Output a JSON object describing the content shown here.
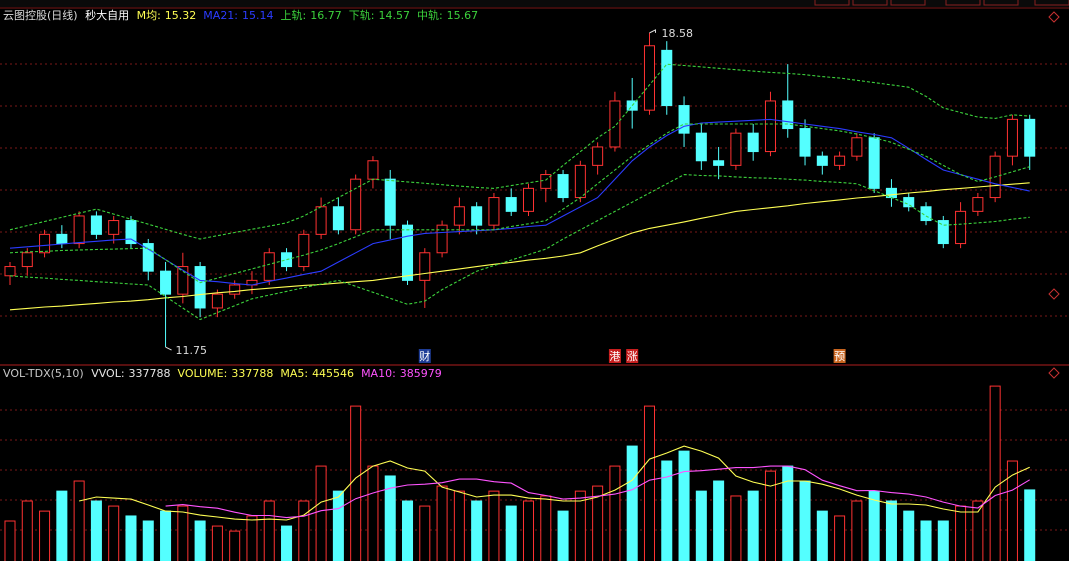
{
  "chart_data": [
    {
      "type": "candlestick",
      "title": "云图控股(日线)",
      "subtitle": "秒大自用",
      "ylim": [
        11.36,
        18.86
      ],
      "up_color": "#ff3232",
      "down_color": "#54ffff",
      "open": [
        13.3,
        13.5,
        13.8,
        14.2,
        14.0,
        14.6,
        14.2,
        14.5,
        14.0,
        13.4,
        12.9,
        13.5,
        12.6,
        12.9,
        13.1,
        13.2,
        13.8,
        13.5,
        14.2,
        14.8,
        14.3,
        15.4,
        15.4,
        14.4,
        13.2,
        13.8,
        14.4,
        14.8,
        14.4,
        15.0,
        14.7,
        15.2,
        15.5,
        15.0,
        15.7,
        16.1,
        17.1,
        16.9,
        18.2,
        17.0,
        16.4,
        15.8,
        15.7,
        16.4,
        16.0,
        17.1,
        16.5,
        15.9,
        15.7,
        15.9,
        16.3,
        15.2,
        15.0,
        14.8,
        14.5,
        14.0,
        14.7,
        15.0,
        15.9,
        16.7
      ],
      "high": [
        13.6,
        13.9,
        14.3,
        14.4,
        14.7,
        14.7,
        14.6,
        14.6,
        14.1,
        13.6,
        13.8,
        13.6,
        13.0,
        13.2,
        13.4,
        13.9,
        13.9,
        14.3,
        15.0,
        15.0,
        15.5,
        15.9,
        15.6,
        14.5,
        13.9,
        14.5,
        15.0,
        14.9,
        15.1,
        15.2,
        15.3,
        15.6,
        15.6,
        15.8,
        16.2,
        17.3,
        17.6,
        18.58,
        18.4,
        17.2,
        16.6,
        16.1,
        16.5,
        16.6,
        17.3,
        17.9,
        16.7,
        16.0,
        16.0,
        16.4,
        16.4,
        15.4,
        15.1,
        14.9,
        14.6,
        14.9,
        15.1,
        16.0,
        16.8,
        16.8
      ],
      "low": [
        13.1,
        13.3,
        13.7,
        13.9,
        13.9,
        14.1,
        14.0,
        13.9,
        13.2,
        11.75,
        12.7,
        12.4,
        12.4,
        12.8,
        12.9,
        13.1,
        13.4,
        13.4,
        14.1,
        14.2,
        14.2,
        15.2,
        14.1,
        13.1,
        12.6,
        13.7,
        14.2,
        14.2,
        14.3,
        14.6,
        14.6,
        14.9,
        14.9,
        14.9,
        15.5,
        16.0,
        16.5,
        16.8,
        16.8,
        16.1,
        15.6,
        15.4,
        15.6,
        15.8,
        15.9,
        16.3,
        15.7,
        15.5,
        15.6,
        15.8,
        15.1,
        14.8,
        14.7,
        14.4,
        13.9,
        13.9,
        14.6,
        14.9,
        15.7,
        15.6
      ],
      "close": [
        13.5,
        13.8,
        14.2,
        14.0,
        14.6,
        14.2,
        14.5,
        14.0,
        13.4,
        12.9,
        13.5,
        12.6,
        12.9,
        13.1,
        13.2,
        13.8,
        13.5,
        14.2,
        14.8,
        14.3,
        15.4,
        15.8,
        14.4,
        13.2,
        13.8,
        14.4,
        14.8,
        14.4,
        15.0,
        14.7,
        15.2,
        15.5,
        15.0,
        15.7,
        16.1,
        17.1,
        16.9,
        18.3,
        17.0,
        16.4,
        15.8,
        15.7,
        16.4,
        16.0,
        17.1,
        16.5,
        15.9,
        15.7,
        15.9,
        16.3,
        15.2,
        15.0,
        14.8,
        14.5,
        14.0,
        14.7,
        15.0,
        15.9,
        16.7,
        15.9
      ],
      "series": [
        {
          "name": "M均:",
          "color": "#ffff54",
          "dashed": false,
          "values": [
            12.56,
            12.59,
            12.62,
            12.64,
            12.67,
            12.7,
            12.73,
            12.75,
            12.78,
            12.82,
            12.85,
            12.89,
            12.93,
            12.96,
            13.0,
            13.03,
            13.06,
            13.09,
            13.11,
            13.14,
            13.17,
            13.2,
            13.25,
            13.3,
            13.35,
            13.4,
            13.45,
            13.5,
            13.55,
            13.59,
            13.64,
            13.68,
            13.73,
            13.8,
            13.95,
            14.09,
            14.23,
            14.33,
            14.4,
            14.47,
            14.55,
            14.62,
            14.7,
            14.74,
            14.78,
            14.82,
            14.87,
            14.91,
            14.95,
            14.99,
            15.02,
            15.06,
            15.1,
            15.13,
            15.17,
            15.2,
            15.23,
            15.26,
            15.29,
            15.32
          ]
        },
        {
          "name": "MA21:",
          "color": "#2b3cff",
          "dashed": false,
          "values": [
            13.9,
            13.93,
            13.96,
            13.99,
            14.02,
            14.05,
            14.08,
            14.1,
            13.88,
            13.65,
            13.42,
            13.2,
            13.17,
            13.13,
            13.1,
            13.18,
            13.25,
            13.33,
            13.4,
            13.6,
            13.8,
            14.0,
            14.08,
            14.16,
            14.22,
            14.24,
            14.26,
            14.28,
            14.3,
            14.33,
            14.37,
            14.4,
            14.6,
            14.8,
            15.0,
            15.4,
            15.8,
            16.1,
            16.35,
            16.55,
            16.62,
            16.64,
            16.66,
            16.68,
            16.7,
            16.65,
            16.6,
            16.55,
            16.5,
            16.43,
            16.37,
            16.3,
            16.07,
            15.83,
            15.6,
            15.5,
            15.4,
            15.3,
            15.22,
            15.14
          ]
        },
        {
          "name": "上轨:",
          "color": "#3cd23c",
          "dashed": true,
          "values": [
            14.3,
            14.39,
            14.48,
            14.57,
            14.66,
            14.75,
            14.64,
            14.53,
            14.42,
            14.31,
            14.2,
            14.1,
            14.17,
            14.24,
            14.31,
            14.38,
            14.45,
            14.6,
            14.8,
            15.0,
            15.2,
            15.4,
            15.37,
            15.34,
            15.31,
            15.28,
            15.25,
            15.22,
            15.2,
            15.26,
            15.32,
            15.38,
            15.7,
            16.0,
            16.3,
            16.55,
            17.0,
            17.45,
            17.9,
            17.87,
            17.84,
            17.81,
            17.78,
            17.75,
            17.72,
            17.7,
            17.67,
            17.63,
            17.6,
            17.55,
            17.5,
            17.45,
            17.4,
            17.2,
            16.95,
            16.85,
            16.75,
            16.72,
            16.8,
            16.77
          ]
        },
        {
          "name": "下轨:",
          "color": "#3cd23c",
          "dashed": true,
          "values": [
            13.3,
            13.27,
            13.25,
            13.22,
            13.2,
            13.17,
            13.15,
            13.12,
            13.1,
            12.85,
            12.6,
            12.35,
            12.5,
            12.65,
            12.8,
            12.88,
            12.96,
            13.04,
            13.12,
            13.2,
            13.07,
            12.94,
            12.81,
            12.68,
            12.75,
            13.0,
            13.2,
            13.4,
            13.52,
            13.64,
            13.76,
            13.88,
            14.1,
            14.3,
            14.5,
            14.7,
            14.9,
            15.1,
            15.3,
            15.5,
            15.48,
            15.47,
            15.45,
            15.43,
            15.42,
            15.4,
            15.38,
            15.35,
            15.33,
            15.3,
            15.15,
            15.0,
            14.85,
            14.6,
            14.4,
            14.42,
            14.45,
            14.48,
            14.53,
            14.57
          ]
        },
        {
          "name": "中轨:",
          "color": "#3cd23c",
          "dashed": true,
          "values": [
            13.8,
            13.82,
            13.83,
            13.85,
            13.86,
            13.87,
            13.88,
            13.89,
            13.9,
            13.65,
            13.4,
            13.15,
            13.25,
            13.35,
            13.45,
            13.55,
            13.65,
            13.75,
            13.86,
            14.0,
            14.15,
            14.3,
            14.3,
            14.3,
            14.3,
            14.3,
            14.3,
            14.3,
            14.3,
            14.37,
            14.43,
            14.5,
            14.75,
            15.0,
            15.3,
            15.6,
            15.9,
            16.15,
            16.4,
            16.6,
            16.6,
            16.6,
            16.6,
            16.6,
            16.6,
            16.6,
            16.55,
            16.5,
            16.45,
            16.38,
            16.3,
            16.2,
            16.05,
            15.9,
            15.7,
            15.5,
            15.35,
            15.45,
            15.56,
            15.67
          ]
        }
      ],
      "event_labels": [
        null,
        null,
        null,
        null,
        null,
        null,
        null,
        null,
        null,
        null,
        null,
        null,
        null,
        null,
        null,
        null,
        null,
        null,
        null,
        null,
        null,
        null,
        null,
        null,
        "财",
        null,
        null,
        null,
        null,
        null,
        null,
        null,
        null,
        null,
        null,
        "港",
        "涨",
        null,
        null,
        null,
        null,
        null,
        null,
        null,
        null,
        null,
        null,
        null,
        "预",
        null,
        null,
        null,
        null,
        null,
        null,
        null,
        null,
        null,
        null,
        null
      ],
      "event_colors": [
        null,
        null,
        null,
        null,
        null,
        null,
        null,
        null,
        null,
        null,
        null,
        null,
        null,
        null,
        null,
        null,
        null,
        null,
        null,
        null,
        null,
        null,
        null,
        null,
        "#1e3c96",
        null,
        null,
        null,
        null,
        null,
        null,
        null,
        null,
        null,
        null,
        "#c81e1e",
        "#c81e1e",
        null,
        null,
        null,
        null,
        null,
        null,
        null,
        null,
        null,
        null,
        null,
        "#c8641e",
        null,
        null,
        null,
        null,
        null,
        null,
        null,
        null,
        null,
        null,
        null
      ]
    },
    {
      "type": "volume",
      "title": "VOL-TDX(5,10)",
      "ylim": [
        0,
        860000
      ],
      "value_names": [
        "VVOL:",
        "VOLUME:"
      ],
      "value_name_colors": [
        "#e6e6e6",
        "#ffff54"
      ],
      "values": [
        190000,
        285000,
        237000,
        332000,
        380000,
        285000,
        261000,
        214000,
        190000,
        237000,
        261000,
        190000,
        166000,
        142000,
        214000,
        285000,
        166000,
        285000,
        451000,
        332000,
        736000,
        451000,
        404000,
        285000,
        261000,
        356000,
        332000,
        285000,
        332000,
        261000,
        285000,
        309000,
        237000,
        332000,
        356000,
        451000,
        546000,
        736000,
        475000,
        522000,
        332000,
        380000,
        309000,
        332000,
        427000,
        451000,
        380000,
        237000,
        214000,
        285000,
        332000,
        285000,
        237000,
        190000,
        190000,
        261000,
        285000,
        831000,
        475000,
        337788
      ],
      "series": [
        {
          "name": "MA5:",
          "color": "#ffff54",
          "values": [
            null,
            null,
            null,
            null,
            285000,
            304000,
            299000,
            294000,
            266000,
            237000,
            233000,
            218000,
            209000,
            199000,
            195000,
            199000,
            195000,
            218000,
            280000,
            304000,
            394000,
            451000,
            475000,
            442000,
            427000,
            351000,
            328000,
            304000,
            313000,
            313000,
            299000,
            294000,
            285000,
            285000,
            304000,
            337000,
            384000,
            484000,
            513000,
            546000,
            522000,
            489000,
            404000,
            375000,
            356000,
            380000,
            380000,
            365000,
            342000,
            313000,
            290000,
            271000,
            271000,
            266000,
            247000,
            233000,
            233000,
            351000,
            408000,
            445546
          ]
        },
        {
          "name": "MA10:",
          "color": "#ff54ff",
          "values": [
            null,
            null,
            null,
            null,
            null,
            null,
            null,
            null,
            null,
            261000,
            268000,
            258000,
            251000,
            232000,
            216000,
            216000,
            206000,
            213000,
            239000,
            249000,
            296000,
            323000,
            346000,
            361000,
            365000,
            372000,
            389000,
            389000,
            377000,
            370000,
            325000,
            311000,
            294000,
            299000,
            308000,
            318000,
            339000,
            384000,
            399000,
            425000,
            429000,
            436000,
            444000,
            444000,
            451000,
            451000,
            434000,
            384000,
            358000,
            334000,
            335000,
            325000,
            318000,
            304000,
            280000,
            261000,
            252000,
            311000,
            337000,
            385979
          ]
        }
      ]
    }
  ]
}
